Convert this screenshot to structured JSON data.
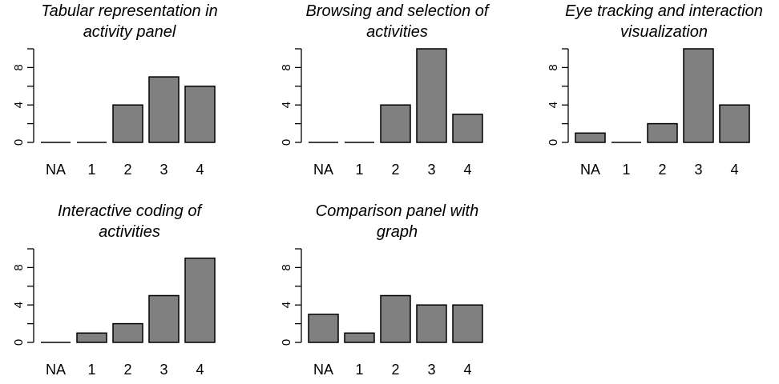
{
  "chart_data": [
    {
      "type": "bar",
      "title_lines": [
        "Tabular representation in",
        "activity panel"
      ],
      "categories": [
        "NA",
        "1",
        "2",
        "3",
        "4"
      ],
      "values": [
        0,
        0,
        4,
        7,
        6
      ],
      "ylim": [
        0,
        10
      ],
      "yticks": [
        0,
        4,
        8
      ],
      "bar_color": "#808080"
    },
    {
      "type": "bar",
      "title_lines": [
        "Browsing and selection of",
        "activities"
      ],
      "categories": [
        "NA",
        "1",
        "2",
        "3",
        "4"
      ],
      "values": [
        0,
        0,
        4,
        10,
        3
      ],
      "ylim": [
        0,
        10
      ],
      "yticks": [
        0,
        4,
        8
      ],
      "bar_color": "#808080"
    },
    {
      "type": "bar",
      "title_lines": [
        "Eye tracking and interaction",
        "visualization"
      ],
      "categories": [
        "NA",
        "1",
        "2",
        "3",
        "4"
      ],
      "values": [
        1,
        0,
        2,
        10,
        4
      ],
      "ylim": [
        0,
        10
      ],
      "yticks": [
        0,
        4,
        8
      ],
      "bar_color": "#808080"
    },
    {
      "type": "bar",
      "title_lines": [
        "Interactive coding of",
        "activities"
      ],
      "categories": [
        "NA",
        "1",
        "2",
        "3",
        "4"
      ],
      "values": [
        0,
        1,
        2,
        5,
        9
      ],
      "ylim": [
        0,
        10
      ],
      "yticks": [
        0,
        4,
        8
      ],
      "bar_color": "#808080"
    },
    {
      "type": "bar",
      "title_lines": [
        "Comparison panel with",
        "graph"
      ],
      "categories": [
        "NA",
        "1",
        "2",
        "3",
        "4"
      ],
      "values": [
        3,
        1,
        5,
        4,
        4
      ],
      "ylim": [
        0,
        10
      ],
      "yticks": [
        0,
        4,
        8
      ],
      "bar_color": "#808080"
    }
  ]
}
